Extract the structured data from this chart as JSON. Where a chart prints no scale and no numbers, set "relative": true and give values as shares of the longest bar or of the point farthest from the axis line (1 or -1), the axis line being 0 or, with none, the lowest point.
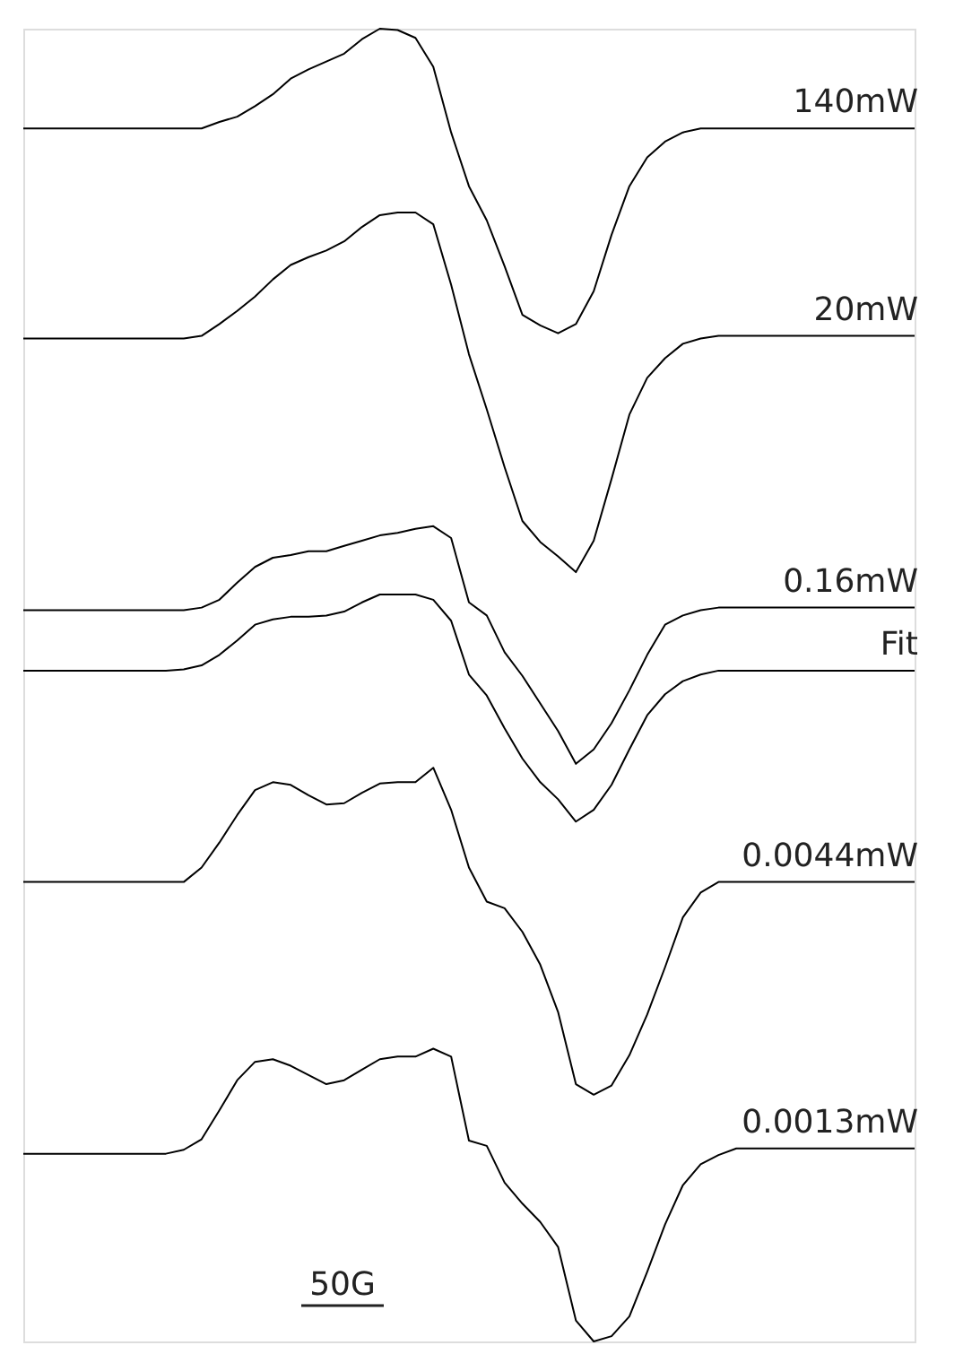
{
  "chart_data": {
    "type": "line",
    "relative": true,
    "legend": false,
    "grid": false,
    "marker": "none",
    "line_style": "solid",
    "categories": [
      null,
      null,
      null,
      null,
      null,
      null,
      null,
      null,
      null,
      null,
      null,
      null,
      null,
      null,
      null,
      null,
      null,
      null,
      null,
      null,
      null,
      null,
      null,
      null,
      null,
      null,
      null,
      null,
      null,
      null,
      null,
      null,
      null,
      null,
      null,
      null,
      null,
      null,
      null,
      null,
      null,
      null,
      null,
      null,
      null,
      null,
      null,
      null,
      null,
      null,
      null
    ],
    "series": [
      {
        "name": "140mW",
        "color": "#000000",
        "values": [
          0.924,
          0.924,
          0.924,
          0.924,
          0.924,
          0.924,
          0.924,
          0.924,
          0.924,
          0.924,
          0.924,
          0.929,
          0.933,
          0.941,
          0.95,
          0.962,
          0.969,
          0.975,
          0.981,
          0.992,
          1.0,
          0.999,
          0.993,
          0.971,
          0.921,
          0.88,
          0.854,
          0.819,
          0.782,
          0.774,
          0.768,
          0.775,
          0.8,
          0.843,
          0.88,
          0.902,
          0.914,
          0.921,
          0.924,
          0.924,
          0.924,
          0.924,
          0.924,
          0.924,
          0.924,
          0.924,
          0.924,
          0.924,
          0.924,
          0.924,
          0.924
        ]
      },
      {
        "name": "20mW",
        "color": "#000000",
        "values": [
          0.764,
          0.764,
          0.764,
          0.764,
          0.764,
          0.764,
          0.764,
          0.764,
          0.764,
          0.764,
          0.766,
          0.775,
          0.785,
          0.796,
          0.809,
          0.82,
          0.826,
          0.831,
          0.838,
          0.849,
          0.858,
          0.86,
          0.86,
          0.851,
          0.805,
          0.752,
          0.71,
          0.666,
          0.625,
          0.609,
          0.598,
          0.586,
          0.61,
          0.657,
          0.706,
          0.734,
          0.749,
          0.76,
          0.764,
          0.766,
          0.766,
          0.766,
          0.766,
          0.766,
          0.766,
          0.766,
          0.766,
          0.766,
          0.766,
          0.766,
          0.766
        ]
      },
      {
        "name": "0.16mW",
        "color": "#000000",
        "values": [
          0.557,
          0.557,
          0.557,
          0.557,
          0.557,
          0.557,
          0.557,
          0.557,
          0.557,
          0.557,
          0.559,
          0.565,
          0.578,
          0.59,
          0.597,
          0.599,
          0.602,
          0.602,
          0.606,
          0.61,
          0.614,
          0.616,
          0.619,
          0.621,
          0.612,
          0.563,
          0.553,
          0.525,
          0.507,
          0.486,
          0.465,
          0.44,
          0.451,
          0.471,
          0.496,
          0.523,
          0.546,
          0.553,
          0.557,
          0.559,
          0.559,
          0.559,
          0.559,
          0.559,
          0.559,
          0.559,
          0.559,
          0.559,
          0.559,
          0.559,
          0.559
        ]
      },
      {
        "name": "Fit",
        "color": "#000000",
        "values": [
          0.511,
          0.511,
          0.511,
          0.511,
          0.511,
          0.511,
          0.511,
          0.511,
          0.511,
          0.512,
          0.515,
          0.523,
          0.534,
          0.546,
          0.55,
          0.552,
          0.552,
          0.553,
          0.556,
          0.563,
          0.569,
          0.569,
          0.569,
          0.565,
          0.549,
          0.508,
          0.492,
          0.467,
          0.444,
          0.426,
          0.413,
          0.396,
          0.405,
          0.424,
          0.451,
          0.477,
          0.493,
          0.503,
          0.508,
          0.511,
          0.511,
          0.511,
          0.511,
          0.511,
          0.511,
          0.511,
          0.511,
          0.511,
          0.511,
          0.511,
          0.511
        ]
      },
      {
        "name": "0.0044mW",
        "color": "#000000",
        "values": [
          0.35,
          0.35,
          0.35,
          0.35,
          0.35,
          0.35,
          0.35,
          0.35,
          0.35,
          0.35,
          0.361,
          0.38,
          0.401,
          0.42,
          0.426,
          0.424,
          0.416,
          0.409,
          0.41,
          0.418,
          0.425,
          0.426,
          0.426,
          0.437,
          0.405,
          0.361,
          0.335,
          0.33,
          0.312,
          0.287,
          0.251,
          0.196,
          0.188,
          0.195,
          0.218,
          0.249,
          0.285,
          0.323,
          0.342,
          0.35,
          0.35,
          0.35,
          0.35,
          0.35,
          0.35,
          0.35,
          0.35,
          0.35,
          0.35,
          0.35,
          0.35
        ]
      },
      {
        "name": "0.0013mW",
        "color": "#000000",
        "values": [
          0.143,
          0.143,
          0.143,
          0.143,
          0.143,
          0.143,
          0.143,
          0.143,
          0.143,
          0.146,
          0.154,
          0.176,
          0.199,
          0.213,
          0.215,
          0.21,
          0.203,
          0.196,
          0.199,
          0.207,
          0.215,
          0.217,
          0.217,
          0.223,
          0.217,
          0.153,
          0.149,
          0.121,
          0.105,
          0.091,
          0.072,
          0.016,
          0,
          0.004,
          0.019,
          0.053,
          0.089,
          0.119,
          0.135,
          0.142,
          0.147,
          0.147,
          0.147,
          0.147,
          0.147,
          0.147,
          0.147,
          0.147,
          0.147,
          0.147,
          0.147
        ]
      }
    ],
    "annotations": [
      "50G"
    ]
  }
}
